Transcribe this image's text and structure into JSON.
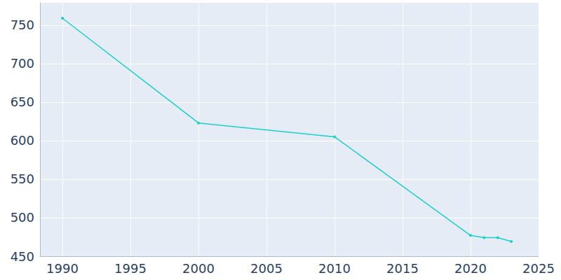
{
  "chart_data": {
    "type": "line",
    "x": [
      1990,
      2000,
      2010,
      2020,
      2021,
      2022,
      2023
    ],
    "values": [
      759,
      623,
      605,
      477,
      474,
      474,
      469
    ],
    "color": "#1ccfc9",
    "marker": "circle",
    "xlim": [
      1988.35,
      2025
    ],
    "xticks": [
      1990,
      1995,
      2000,
      2005,
      2010,
      2015,
      2020,
      2025
    ],
    "ylim": [
      450,
      779
    ],
    "yticks": [
      450,
      500,
      550,
      600,
      650,
      700,
      750
    ],
    "grid": true
  }
}
